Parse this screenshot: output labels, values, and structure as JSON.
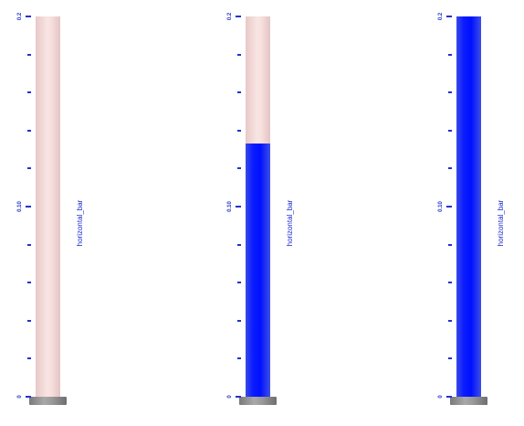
{
  "gauges": [
    {
      "label": "horizontal_bar",
      "level_fraction": 0.0,
      "tick_labels": {
        "top": "0.2",
        "middle": "0.10",
        "bottom": "0"
      }
    },
    {
      "label": "horizontal_bar",
      "level_fraction": 0.667,
      "tick_labels": {
        "top": "0.2",
        "middle": "0.10",
        "bottom": "0"
      }
    },
    {
      "label": "horizontal_bar",
      "level_fraction": 1.0,
      "tick_labels": {
        "top": "0.2",
        "middle": "0.10",
        "bottom": "0"
      }
    }
  ],
  "colors": {
    "fill": "#0010ff",
    "tube": "#f7e2df",
    "base": "#999999",
    "axis": "#2233cc"
  }
}
